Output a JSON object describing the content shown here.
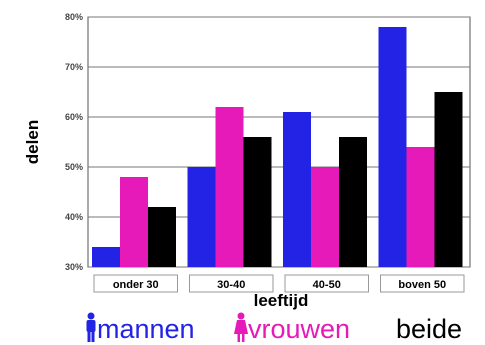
{
  "chart_data": {
    "type": "bar",
    "categories": [
      "onder 30",
      "30-40",
      "40-50",
      "boven 50"
    ],
    "series": [
      {
        "name": "mannen",
        "color": "#2323e6",
        "values": [
          34,
          50,
          61,
          78
        ]
      },
      {
        "name": "vrouwen",
        "color": "#e619b9",
        "values": [
          48,
          62,
          50,
          54
        ]
      },
      {
        "name": "beide",
        "color": "#000000",
        "values": [
          42,
          56,
          56,
          65
        ]
      }
    ],
    "ylim": [
      30,
      80
    ],
    "yticks": [
      30,
      40,
      50,
      60,
      70,
      80
    ],
    "ytick_labels": [
      "30%",
      "40%",
      "50%",
      "60%",
      "70%",
      "80%"
    ],
    "xlabel": "leeftijd",
    "ylabel": "delen",
    "grid": true,
    "legend": {
      "placement": "bottom",
      "icons": {
        "mannen": "male-figure-icon",
        "vrouwen": "female-figure-icon"
      }
    }
  }
}
